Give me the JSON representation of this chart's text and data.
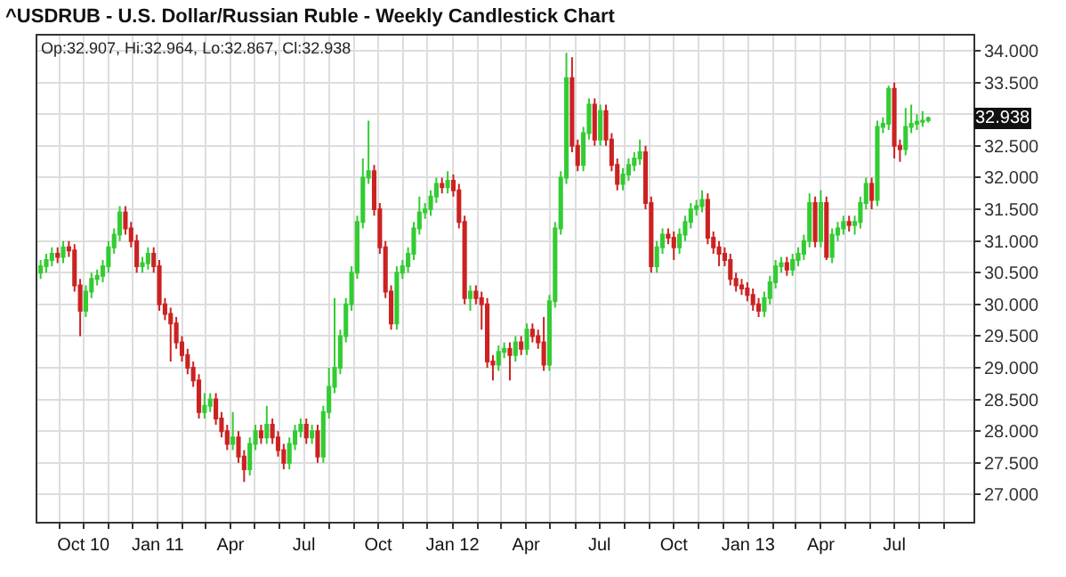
{
  "chart_data": {
    "type": "candlestick",
    "title": "^USDRUB - U.S. Dollar/Russian Ruble - Weekly Candlestick Chart",
    "annotations": [
      "Op:32.907, Hi:32.964, Lo:32.867, Cl:32.938",
      {
        "text": "32.938",
        "y": 32.938
      }
    ],
    "x": [
      "2010-08-09",
      "2010-08-16",
      "2010-08-23",
      "2010-08-30",
      "2010-09-06",
      "2010-09-13",
      "2010-09-20",
      "2010-09-27",
      "2010-10-04",
      "2010-10-11",
      "2010-10-18",
      "2010-10-25",
      "2010-11-01",
      "2010-11-08",
      "2010-11-15",
      "2010-11-22",
      "2010-11-29",
      "2010-12-06",
      "2010-12-13",
      "2010-12-20",
      "2010-12-27",
      "2011-01-03",
      "2011-01-10",
      "2011-01-17",
      "2011-01-24",
      "2011-01-31",
      "2011-02-07",
      "2011-02-14",
      "2011-02-21",
      "2011-02-28",
      "2011-03-07",
      "2011-03-14",
      "2011-03-21",
      "2011-03-28",
      "2011-04-04",
      "2011-04-11",
      "2011-04-18",
      "2011-04-25",
      "2011-05-02",
      "2011-05-09",
      "2011-05-16",
      "2011-05-23",
      "2011-05-30",
      "2011-06-06",
      "2011-06-13",
      "2011-06-20",
      "2011-06-27",
      "2011-07-04",
      "2011-07-11",
      "2011-07-18",
      "2011-07-25",
      "2011-08-01",
      "2011-08-08",
      "2011-08-15",
      "2011-08-22",
      "2011-08-29",
      "2011-09-05",
      "2011-09-12",
      "2011-09-19",
      "2011-09-26",
      "2011-10-03",
      "2011-10-10",
      "2011-10-17",
      "2011-10-24",
      "2011-10-31",
      "2011-11-07",
      "2011-11-14",
      "2011-11-21",
      "2011-11-28",
      "2011-12-05",
      "2011-12-12",
      "2011-12-19",
      "2011-12-26",
      "2012-01-02",
      "2012-01-09",
      "2012-01-16",
      "2012-01-23",
      "2012-01-30",
      "2012-02-06",
      "2012-02-13",
      "2012-02-20",
      "2012-02-27",
      "2012-03-05",
      "2012-03-12",
      "2012-03-19",
      "2012-03-26",
      "2012-04-02",
      "2012-04-09",
      "2012-04-16",
      "2012-04-23",
      "2012-04-30",
      "2012-05-07",
      "2012-05-14",
      "2012-05-21",
      "2012-05-28",
      "2012-06-04",
      "2012-06-11",
      "2012-06-18",
      "2012-06-25",
      "2012-07-02",
      "2012-07-09",
      "2012-07-16",
      "2012-07-23",
      "2012-07-30",
      "2012-08-06",
      "2012-08-13",
      "2012-08-20",
      "2012-08-27",
      "2012-09-03",
      "2012-09-10",
      "2012-09-17",
      "2012-09-24",
      "2012-10-01",
      "2012-10-08",
      "2012-10-15",
      "2012-10-22",
      "2012-10-29",
      "2012-11-05",
      "2012-11-12",
      "2012-11-19",
      "2012-11-26",
      "2012-12-03",
      "2012-12-10",
      "2012-12-17",
      "2012-12-24",
      "2012-12-31",
      "2013-01-07",
      "2013-01-14",
      "2013-01-21",
      "2013-01-28",
      "2013-02-04",
      "2013-02-11",
      "2013-02-18",
      "2013-02-25",
      "2013-03-04",
      "2013-03-11",
      "2013-03-18",
      "2013-03-25",
      "2013-04-01",
      "2013-04-08",
      "2013-04-15",
      "2013-04-22",
      "2013-04-29",
      "2013-05-06",
      "2013-05-13",
      "2013-05-20",
      "2013-05-27",
      "2013-06-03",
      "2013-06-10",
      "2013-06-17",
      "2013-06-24",
      "2013-07-01",
      "2013-07-08",
      "2013-07-15",
      "2013-07-22",
      "2013-07-29",
      "2013-08-05",
      "2013-08-12"
    ],
    "ohlc": [
      [
        30.5,
        30.7,
        30.4,
        30.6
      ],
      [
        30.6,
        30.8,
        30.5,
        30.7
      ],
      [
        30.7,
        30.9,
        30.6,
        30.8
      ],
      [
        30.8,
        30.9,
        30.65,
        30.75
      ],
      [
        30.75,
        31.0,
        30.65,
        30.9
      ],
      [
        30.9,
        31.0,
        30.75,
        30.85
      ],
      [
        30.85,
        30.95,
        30.2,
        30.3
      ],
      [
        30.3,
        30.4,
        29.5,
        29.9
      ],
      [
        29.9,
        30.3,
        29.8,
        30.2
      ],
      [
        30.2,
        30.5,
        30.1,
        30.4
      ],
      [
        30.4,
        30.55,
        30.3,
        30.45
      ],
      [
        30.45,
        30.7,
        30.35,
        30.6
      ],
      [
        30.6,
        31.0,
        30.5,
        30.9
      ],
      [
        30.9,
        31.2,
        30.8,
        31.1
      ],
      [
        31.1,
        31.55,
        31.0,
        31.45
      ],
      [
        31.45,
        31.55,
        31.1,
        31.2
      ],
      [
        31.2,
        31.3,
        30.9,
        31.0
      ],
      [
        31.0,
        31.1,
        30.5,
        30.6
      ],
      [
        30.6,
        30.75,
        30.5,
        30.65
      ],
      [
        30.65,
        30.9,
        30.55,
        30.8
      ],
      [
        30.8,
        30.9,
        30.5,
        30.6
      ],
      [
        30.6,
        30.7,
        29.9,
        30.0
      ],
      [
        30.0,
        30.1,
        29.75,
        29.85
      ],
      [
        29.85,
        29.95,
        29.1,
        29.7
      ],
      [
        29.7,
        29.8,
        29.3,
        29.4
      ],
      [
        29.4,
        29.5,
        29.1,
        29.2
      ],
      [
        29.2,
        29.3,
        28.9,
        29.0
      ],
      [
        29.0,
        29.1,
        28.7,
        28.8
      ],
      [
        28.8,
        28.9,
        28.2,
        28.3
      ],
      [
        28.3,
        28.6,
        28.2,
        28.4
      ],
      [
        28.4,
        28.6,
        28.3,
        28.5
      ],
      [
        28.5,
        28.6,
        28.1,
        28.2
      ],
      [
        28.2,
        28.3,
        27.9,
        28.0
      ],
      [
        28.0,
        28.1,
        27.7,
        27.8
      ],
      [
        27.8,
        28.3,
        27.7,
        27.9
      ],
      [
        27.9,
        28.0,
        27.5,
        27.6
      ],
      [
        27.6,
        27.7,
        27.2,
        27.4
      ],
      [
        27.4,
        27.9,
        27.3,
        27.8
      ],
      [
        27.8,
        28.1,
        27.7,
        28.0
      ],
      [
        28.0,
        28.1,
        27.8,
        27.9
      ],
      [
        27.9,
        28.4,
        27.8,
        28.1
      ],
      [
        28.1,
        28.2,
        27.8,
        27.9
      ],
      [
        27.9,
        28.0,
        27.6,
        27.7
      ],
      [
        27.7,
        27.8,
        27.4,
        27.5
      ],
      [
        27.5,
        27.9,
        27.4,
        27.8
      ],
      [
        27.8,
        28.1,
        27.7,
        28.0
      ],
      [
        28.0,
        28.2,
        27.9,
        28.1
      ],
      [
        28.1,
        28.2,
        27.8,
        27.9
      ],
      [
        27.9,
        28.1,
        27.8,
        28.0
      ],
      [
        28.0,
        28.1,
        27.5,
        27.6
      ],
      [
        27.6,
        28.4,
        27.5,
        28.3
      ],
      [
        28.3,
        29.0,
        28.2,
        28.7
      ],
      [
        28.7,
        30.1,
        28.6,
        29.0
      ],
      [
        29.0,
        29.6,
        28.9,
        29.5
      ],
      [
        29.5,
        30.1,
        29.4,
        30.0
      ],
      [
        30.0,
        30.6,
        29.9,
        30.5
      ],
      [
        30.5,
        31.4,
        30.4,
        31.3
      ],
      [
        31.3,
        32.3,
        31.2,
        32.0
      ],
      [
        32.0,
        32.9,
        31.9,
        32.1
      ],
      [
        32.1,
        32.2,
        31.4,
        31.5
      ],
      [
        31.5,
        31.6,
        30.8,
        30.9
      ],
      [
        30.9,
        31.0,
        30.1,
        30.2
      ],
      [
        30.2,
        30.3,
        29.6,
        29.7
      ],
      [
        29.7,
        30.6,
        29.6,
        30.5
      ],
      [
        30.5,
        30.7,
        30.4,
        30.6
      ],
      [
        30.6,
        30.9,
        30.5,
        30.8
      ],
      [
        30.8,
        31.3,
        30.7,
        31.2
      ],
      [
        31.2,
        31.7,
        31.1,
        31.45
      ],
      [
        31.45,
        31.6,
        31.35,
        31.5
      ],
      [
        31.5,
        31.8,
        31.4,
        31.7
      ],
      [
        31.7,
        32.0,
        31.6,
        31.9
      ],
      [
        31.9,
        32.0,
        31.75,
        31.85
      ],
      [
        31.85,
        32.1,
        31.75,
        31.95
      ],
      [
        31.95,
        32.05,
        31.7,
        31.8
      ],
      [
        31.8,
        31.9,
        31.2,
        31.3
      ],
      [
        31.3,
        31.4,
        30.0,
        30.1
      ],
      [
        30.1,
        30.3,
        29.9,
        30.2
      ],
      [
        30.2,
        30.3,
        30.0,
        30.1
      ],
      [
        30.1,
        30.2,
        29.6,
        30.0
      ],
      [
        30.0,
        30.1,
        29.0,
        29.1
      ],
      [
        29.1,
        29.2,
        28.8,
        29.05
      ],
      [
        29.05,
        29.35,
        28.95,
        29.25
      ],
      [
        29.25,
        29.4,
        29.15,
        29.3
      ],
      [
        29.3,
        29.4,
        28.8,
        29.2
      ],
      [
        29.2,
        29.5,
        29.1,
        29.4
      ],
      [
        29.4,
        29.5,
        29.2,
        29.3
      ],
      [
        29.3,
        29.7,
        29.2,
        29.6
      ],
      [
        29.6,
        29.7,
        29.4,
        29.5
      ],
      [
        29.5,
        29.6,
        29.3,
        29.4
      ],
      [
        29.4,
        29.8,
        28.95,
        29.05
      ],
      [
        29.05,
        30.15,
        28.95,
        30.05
      ],
      [
        30.05,
        31.3,
        29.95,
        31.2
      ],
      [
        31.2,
        32.1,
        31.1,
        32.0
      ],
      [
        32.0,
        33.97,
        31.9,
        33.57
      ],
      [
        33.57,
        33.9,
        32.4,
        32.5
      ],
      [
        32.5,
        32.6,
        32.1,
        32.2
      ],
      [
        32.2,
        32.8,
        32.1,
        32.7
      ],
      [
        32.7,
        33.25,
        32.6,
        33.15
      ],
      [
        33.15,
        33.25,
        32.5,
        32.6
      ],
      [
        32.6,
        33.15,
        32.5,
        33.05
      ],
      [
        33.05,
        33.15,
        32.5,
        32.6
      ],
      [
        32.6,
        32.7,
        32.1,
        32.2
      ],
      [
        32.2,
        32.3,
        31.8,
        31.9
      ],
      [
        31.9,
        32.15,
        31.8,
        32.05
      ],
      [
        32.05,
        32.3,
        31.95,
        32.2
      ],
      [
        32.2,
        32.4,
        32.1,
        32.3
      ],
      [
        32.3,
        32.6,
        32.2,
        32.4
      ],
      [
        32.4,
        32.5,
        31.5,
        31.6
      ],
      [
        31.6,
        31.7,
        30.5,
        30.6
      ],
      [
        30.6,
        31.0,
        30.5,
        30.9
      ],
      [
        30.9,
        31.2,
        30.8,
        31.1
      ],
      [
        31.1,
        31.2,
        30.95,
        31.05
      ],
      [
        31.05,
        31.15,
        30.7,
        30.9
      ],
      [
        30.9,
        31.2,
        30.8,
        31.1
      ],
      [
        31.1,
        31.4,
        31.0,
        31.3
      ],
      [
        31.3,
        31.6,
        31.2,
        31.5
      ],
      [
        31.5,
        31.65,
        31.4,
        31.55
      ],
      [
        31.55,
        31.8,
        31.45,
        31.65
      ],
      [
        31.65,
        31.75,
        30.95,
        31.05
      ],
      [
        31.05,
        31.15,
        30.8,
        30.9
      ],
      [
        30.9,
        31.0,
        30.6,
        30.8
      ],
      [
        30.8,
        30.9,
        30.6,
        30.7
      ],
      [
        30.7,
        30.8,
        30.3,
        30.4
      ],
      [
        30.4,
        30.5,
        30.2,
        30.3
      ],
      [
        30.3,
        30.4,
        30.15,
        30.25
      ],
      [
        30.25,
        30.35,
        30.05,
        30.15
      ],
      [
        30.15,
        30.25,
        29.9,
        30.0
      ],
      [
        30.0,
        30.1,
        29.8,
        29.9
      ],
      [
        29.9,
        30.2,
        29.8,
        30.1
      ],
      [
        30.1,
        30.45,
        30.0,
        30.35
      ],
      [
        30.35,
        30.7,
        30.25,
        30.6
      ],
      [
        30.6,
        30.75,
        30.5,
        30.65
      ],
      [
        30.65,
        30.75,
        30.45,
        30.55
      ],
      [
        30.55,
        30.8,
        30.45,
        30.7
      ],
      [
        30.7,
        30.9,
        30.6,
        30.8
      ],
      [
        30.8,
        31.1,
        30.7,
        31.0
      ],
      [
        31.0,
        31.75,
        30.9,
        31.6
      ],
      [
        31.6,
        31.7,
        30.9,
        31.0
      ],
      [
        31.0,
        31.8,
        30.9,
        31.6
      ],
      [
        31.6,
        31.7,
        30.7,
        30.75
      ],
      [
        30.75,
        31.2,
        30.65,
        31.1
      ],
      [
        31.1,
        31.3,
        31.0,
        31.2
      ],
      [
        31.2,
        31.4,
        31.1,
        31.3
      ],
      [
        31.3,
        31.4,
        31.15,
        31.25
      ],
      [
        31.25,
        31.4,
        31.1,
        31.3
      ],
      [
        31.3,
        31.7,
        31.2,
        31.6
      ],
      [
        31.6,
        32.0,
        31.5,
        31.9
      ],
      [
        31.9,
        32.0,
        31.5,
        31.65
      ],
      [
        31.65,
        32.9,
        31.55,
        32.8
      ],
      [
        32.8,
        32.95,
        32.7,
        32.85
      ],
      [
        32.85,
        33.45,
        32.75,
        33.4
      ],
      [
        33.4,
        33.5,
        32.3,
        32.5
      ],
      [
        32.5,
        32.6,
        32.25,
        32.45
      ],
      [
        32.45,
        33.1,
        32.35,
        32.8
      ],
      [
        32.8,
        33.15,
        32.7,
        32.85
      ],
      [
        32.85,
        33.0,
        32.75,
        32.88
      ],
      [
        32.88,
        33.05,
        32.8,
        32.9
      ],
      [
        32.907,
        32.964,
        32.867,
        32.938
      ]
    ],
    "colors": [
      "#33cc33",
      "#33cc33",
      "#33cc33",
      "#cc2222",
      "#33cc33",
      "#cc2222",
      "#cc2222",
      "#cc2222",
      "#33cc33",
      "#33cc33",
      "#33cc33",
      "#33cc33",
      "#33cc33",
      "#33cc33",
      "#33cc33",
      "#cc2222",
      "#cc2222",
      "#cc2222",
      "#33cc33",
      "#33cc33",
      "#cc2222",
      "#cc2222",
      "#cc2222",
      "#cc2222",
      "#cc2222",
      "#cc2222",
      "#cc2222",
      "#cc2222",
      "#cc2222",
      "#33cc33",
      "#33cc33",
      "#cc2222",
      "#cc2222",
      "#cc2222",
      "#33cc33",
      "#cc2222",
      "#cc2222",
      "#33cc33",
      "#33cc33",
      "#cc2222",
      "#33cc33",
      "#cc2222",
      "#cc2222",
      "#cc2222",
      "#33cc33",
      "#33cc33",
      "#33cc33",
      "#cc2222",
      "#33cc33",
      "#cc2222",
      "#33cc33",
      "#33cc33",
      "#33cc33",
      "#33cc33",
      "#33cc33",
      "#33cc33",
      "#33cc33",
      "#33cc33",
      "#33cc33",
      "#cc2222",
      "#cc2222",
      "#cc2222",
      "#cc2222",
      "#33cc33",
      "#33cc33",
      "#33cc33",
      "#33cc33",
      "#33cc33",
      "#33cc33",
      "#33cc33",
      "#33cc33",
      "#cc2222",
      "#33cc33",
      "#cc2222",
      "#cc2222",
      "#cc2222",
      "#33cc33",
      "#cc2222",
      "#cc2222",
      "#cc2222",
      "#cc2222",
      "#33cc33",
      "#33cc33",
      "#cc2222",
      "#33cc33",
      "#cc2222",
      "#33cc33",
      "#cc2222",
      "#cc2222",
      "#cc2222",
      "#33cc33",
      "#33cc33",
      "#33cc33",
      "#33cc33",
      "#cc2222",
      "#cc2222",
      "#33cc33",
      "#33cc33",
      "#cc2222",
      "#33cc33",
      "#cc2222",
      "#cc2222",
      "#cc2222",
      "#33cc33",
      "#33cc33",
      "#33cc33",
      "#33cc33",
      "#cc2222",
      "#cc2222",
      "#33cc33",
      "#33cc33",
      "#cc2222",
      "#cc2222",
      "#33cc33",
      "#33cc33",
      "#33cc33",
      "#33cc33",
      "#33cc33",
      "#cc2222",
      "#cc2222",
      "#cc2222",
      "#cc2222",
      "#cc2222",
      "#cc2222",
      "#cc2222",
      "#cc2222",
      "#cc2222",
      "#cc2222",
      "#33cc33",
      "#33cc33",
      "#33cc33",
      "#33cc33",
      "#cc2222",
      "#33cc33",
      "#33cc33",
      "#33cc33",
      "#33cc33",
      "#cc2222",
      "#33cc33",
      "#cc2222",
      "#33cc33",
      "#33cc33",
      "#33cc33",
      "#cc2222",
      "#33cc33",
      "#33cc33",
      "#33cc33",
      "#cc2222",
      "#33cc33",
      "#33cc33",
      "#33cc33",
      "#cc2222",
      "#cc2222",
      "#33cc33",
      "#33cc33",
      "#33cc33",
      "#33cc33",
      "#33cc33"
    ],
    "xlim": [
      "2010-08-05",
      "2013-10-07"
    ],
    "xticks": [
      {
        "value": "2010-09-01",
        "label": null
      },
      {
        "value": "2010-10-01",
        "label": "Oct 10"
      },
      {
        "value": "2010-11-01",
        "label": null
      },
      {
        "value": "2010-12-01",
        "label": null
      },
      {
        "value": "2011-01-01",
        "label": "Jan 11"
      },
      {
        "value": "2011-02-01",
        "label": null
      },
      {
        "value": "2011-03-01",
        "label": null
      },
      {
        "value": "2011-04-01",
        "label": "Apr"
      },
      {
        "value": "2011-05-01",
        "label": null
      },
      {
        "value": "2011-06-01",
        "label": null
      },
      {
        "value": "2011-07-01",
        "label": "Jul"
      },
      {
        "value": "2011-08-01",
        "label": null
      },
      {
        "value": "2011-09-01",
        "label": null
      },
      {
        "value": "2011-10-01",
        "label": "Oct"
      },
      {
        "value": "2011-11-01",
        "label": null
      },
      {
        "value": "2011-12-01",
        "label": null
      },
      {
        "value": "2012-01-01",
        "label": "Jan 12"
      },
      {
        "value": "2012-02-01",
        "label": null
      },
      {
        "value": "2012-03-01",
        "label": null
      },
      {
        "value": "2012-04-01",
        "label": "Apr"
      },
      {
        "value": "2012-05-01",
        "label": null
      },
      {
        "value": "2012-06-01",
        "label": null
      },
      {
        "value": "2012-07-01",
        "label": "Jul"
      },
      {
        "value": "2012-08-01",
        "label": null
      },
      {
        "value": "2012-09-01",
        "label": null
      },
      {
        "value": "2012-10-01",
        "label": "Oct"
      },
      {
        "value": "2012-11-01",
        "label": null
      },
      {
        "value": "2012-12-01",
        "label": null
      },
      {
        "value": "2013-01-01",
        "label": "Jan 13"
      },
      {
        "value": "2013-02-01",
        "label": null
      },
      {
        "value": "2013-03-01",
        "label": null
      },
      {
        "value": "2013-04-01",
        "label": "Apr"
      },
      {
        "value": "2013-05-01",
        "label": null
      },
      {
        "value": "2013-06-01",
        "label": null
      },
      {
        "value": "2013-07-01",
        "label": "Jul"
      },
      {
        "value": "2013-08-01",
        "label": null
      },
      {
        "value": "2013-09-01",
        "label": null
      }
    ],
    "ylim": [
      26.57,
      34.24
    ],
    "yticks": [
      {
        "value": 27,
        "label": "27.000"
      },
      {
        "value": 27.5,
        "label": "27.500"
      },
      {
        "value": 28,
        "label": "28.000"
      },
      {
        "value": 28.5,
        "label": "28.500"
      },
      {
        "value": 29,
        "label": "29.000"
      },
      {
        "value": 29.5,
        "label": "29.500"
      },
      {
        "value": 30,
        "label": "30.000"
      },
      {
        "value": 30.5,
        "label": "30.500"
      },
      {
        "value": 31,
        "label": "31.000"
      },
      {
        "value": 31.5,
        "label": "31.500"
      },
      {
        "value": 32,
        "label": "32.000"
      },
      {
        "value": 32.5,
        "label": "32.500"
      },
      {
        "value": 33,
        "label": null
      },
      {
        "value": 33.5,
        "label": "33.500"
      },
      {
        "value": 34,
        "label": "34.000"
      }
    ],
    "grid": true
  }
}
